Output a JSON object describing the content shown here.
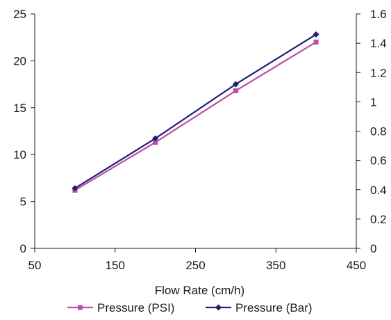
{
  "chart_data": {
    "type": "line",
    "title": "",
    "xlabel": "Flow Rate (cm/h)",
    "ylabel_left": "",
    "ylabel_right": "",
    "x_ticks": [
      "50",
      "150",
      "250",
      "350",
      "450"
    ],
    "y_left_ticks": [
      "0",
      "5",
      "10",
      "15",
      "20",
      "25"
    ],
    "y_right_ticks": [
      "0",
      "0.2",
      "0.4",
      "0.6",
      "0.8",
      "1",
      "1.2",
      "1.4",
      "1.6"
    ],
    "xlim": [
      50,
      450
    ],
    "ylim_left": [
      0,
      25
    ],
    "ylim_right": [
      0,
      1.6
    ],
    "grid": false,
    "legend_position": "bottom",
    "x": [
      100,
      200,
      300,
      400
    ],
    "series": [
      {
        "name": "Pressure (PSI)",
        "axis": "left",
        "values": [
          6.2,
          11.3,
          16.8,
          22.0
        ],
        "color": "#c04ba8",
        "marker": "square"
      },
      {
        "name": "Pressure (Bar)",
        "axis": "right",
        "values": [
          0.41,
          0.75,
          1.12,
          1.46
        ],
        "color": "#1f1f75",
        "marker": "diamond"
      }
    ]
  }
}
